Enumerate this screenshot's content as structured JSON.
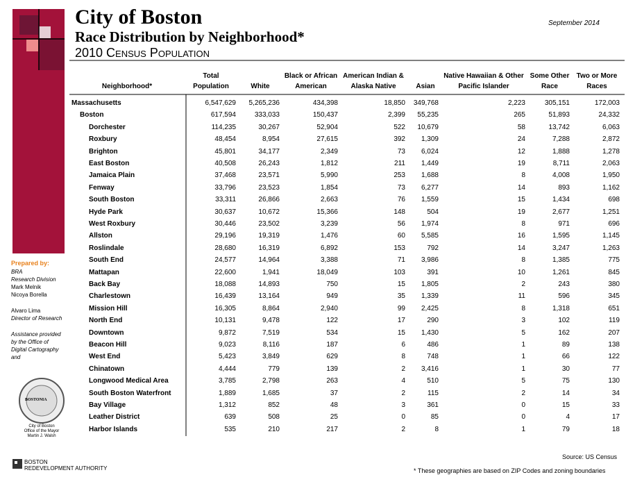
{
  "header": {
    "title": "City of Boston",
    "subtitle": "Race Distribution by Neighborhood*",
    "subtitle2": "2010 Census Population",
    "date": "September 2014"
  },
  "sidebar": {
    "prepared_label": "Prepared by:",
    "lines": [
      "BRA",
      "Research Division",
      "Mark Melnik",
      "Nicoya Borella"
    ],
    "director": [
      "Alvaro Lima",
      "Director of Research"
    ],
    "assistance": "Assistance provided by the Office of Digital Cartography and",
    "seal_text": "BOSTONIA",
    "seal_caption": [
      "City of Boston",
      "Office of the Mayor",
      "Martin J. Walsh"
    ]
  },
  "footer": {
    "logo": [
      "BOSTON",
      "REDEVELOPMENT AUTHORITY"
    ],
    "source": "Source: US Census",
    "note": "* These geographies are based on ZIP Codes and zoning boundaries"
  },
  "table": {
    "header": [
      [
        "Neighborhood*"
      ],
      [
        "Total",
        "Population"
      ],
      [
        "White"
      ],
      [
        "Black or African",
        "American"
      ],
      [
        "American Indian &",
        "Alaska Native"
      ],
      [
        "Asian"
      ],
      [
        "Native Hawaiian & Other",
        "Pacific Islander"
      ],
      [
        "Some Other",
        "Race"
      ],
      [
        "Two or More",
        "Races"
      ]
    ],
    "rows": [
      [
        "Massachusetts",
        "6,547,629",
        "5,265,236",
        "434,398",
        "18,850",
        "349,768",
        "2,223",
        "305,151",
        "172,003"
      ],
      [
        "Boston",
        "617,594",
        "333,033",
        "150,437",
        "2,399",
        "55,235",
        "265",
        "51,893",
        "24,332"
      ],
      [
        "Dorchester",
        "114,235",
        "30,267",
        "52,904",
        "522",
        "10,679",
        "58",
        "13,742",
        "6,063"
      ],
      [
        "Roxbury",
        "48,454",
        "8,954",
        "27,615",
        "392",
        "1,309",
        "24",
        "7,288",
        "2,872"
      ],
      [
        "Brighton",
        "45,801",
        "34,177",
        "2,349",
        "73",
        "6,024",
        "12",
        "1,888",
        "1,278"
      ],
      [
        "East Boston",
        "40,508",
        "26,243",
        "1,812",
        "211",
        "1,449",
        "19",
        "8,711",
        "2,063"
      ],
      [
        "Jamaica Plain",
        "37,468",
        "23,571",
        "5,990",
        "253",
        "1,688",
        "8",
        "4,008",
        "1,950"
      ],
      [
        "Fenway",
        "33,796",
        "23,523",
        "1,854",
        "73",
        "6,277",
        "14",
        "893",
        "1,162"
      ],
      [
        "South Boston",
        "33,311",
        "26,866",
        "2,663",
        "76",
        "1,559",
        "15",
        "1,434",
        "698"
      ],
      [
        "Hyde Park",
        "30,637",
        "10,672",
        "15,366",
        "148",
        "504",
        "19",
        "2,677",
        "1,251"
      ],
      [
        "West Roxbury",
        "30,446",
        "23,502",
        "3,239",
        "56",
        "1,974",
        "8",
        "971",
        "696"
      ],
      [
        "Allston",
        "29,196",
        "19,319",
        "1,476",
        "60",
        "5,585",
        "16",
        "1,595",
        "1,145"
      ],
      [
        "Roslindale",
        "28,680",
        "16,319",
        "6,892",
        "153",
        "792",
        "14",
        "3,247",
        "1,263"
      ],
      [
        "South End",
        "24,577",
        "14,964",
        "3,388",
        "71",
        "3,986",
        "8",
        "1,385",
        "775"
      ],
      [
        "Mattapan",
        "22,600",
        "1,941",
        "18,049",
        "103",
        "391",
        "10",
        "1,261",
        "845"
      ],
      [
        "Back Bay",
        "18,088",
        "14,893",
        "750",
        "15",
        "1,805",
        "2",
        "243",
        "380"
      ],
      [
        "Charlestown",
        "16,439",
        "13,164",
        "949",
        "35",
        "1,339",
        "11",
        "596",
        "345"
      ],
      [
        "Mission Hill",
        "16,305",
        "8,864",
        "2,940",
        "99",
        "2,425",
        "8",
        "1,318",
        "651"
      ],
      [
        "North End",
        "10,131",
        "9,478",
        "122",
        "17",
        "290",
        "3",
        "102",
        "119"
      ],
      [
        "Downtown",
        "9,872",
        "7,519",
        "534",
        "15",
        "1,430",
        "5",
        "162",
        "207"
      ],
      [
        "Beacon Hill",
        "9,023",
        "8,116",
        "187",
        "6",
        "486",
        "1",
        "89",
        "138"
      ],
      [
        "West End",
        "5,423",
        "3,849",
        "629",
        "8",
        "748",
        "1",
        "66",
        "122"
      ],
      [
        "Chinatown",
        "4,444",
        "779",
        "139",
        "2",
        "3,416",
        "1",
        "30",
        "77"
      ],
      [
        "Longwood Medical Area",
        "3,785",
        "2,798",
        "263",
        "4",
        "510",
        "5",
        "75",
        "130"
      ],
      [
        "South Boston Waterfront",
        "1,889",
        "1,685",
        "37",
        "2",
        "115",
        "2",
        "14",
        "34"
      ],
      [
        "Bay Village",
        "1,312",
        "852",
        "48",
        "3",
        "361",
        "0",
        "15",
        "33"
      ],
      [
        "Leather District",
        "639",
        "508",
        "25",
        "0",
        "85",
        "0",
        "4",
        "17"
      ],
      [
        "Harbor Islands",
        "535",
        "210",
        "217",
        "2",
        "8",
        "1",
        "79",
        "18"
      ]
    ]
  }
}
